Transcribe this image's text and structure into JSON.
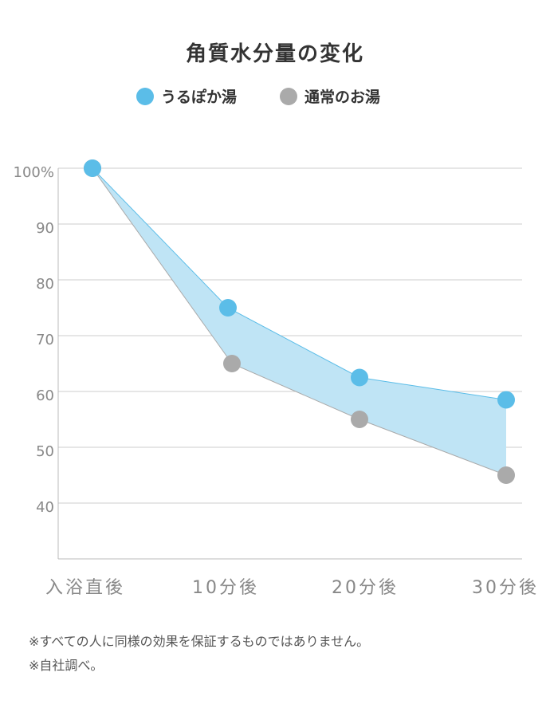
{
  "chart_data": {
    "type": "area",
    "title": "角質水分量の変化",
    "categories": [
      "入浴直後",
      "10分後",
      "20分後",
      "30分後"
    ],
    "series": [
      {
        "name": "うるぽか湯",
        "values": [
          100,
          75,
          62.5,
          58.5
        ],
        "color": "#5bbde8"
      },
      {
        "name": "通常のお湯",
        "values": [
          100,
          65,
          55,
          45
        ],
        "color": "#aaaaaa"
      }
    ],
    "fill_color": "#bfe4f5",
    "ylim": [
      30,
      100
    ],
    "yticks": [
      {
        "value": 100,
        "label": "100%"
      },
      {
        "value": 90,
        "label": "90"
      },
      {
        "value": 80,
        "label": "80"
      },
      {
        "value": 70,
        "label": "70"
      },
      {
        "value": 60,
        "label": "60"
      },
      {
        "value": 50,
        "label": "50"
      },
      {
        "value": 40,
        "label": "40"
      }
    ],
    "xlabel": "",
    "ylabel": "",
    "grid": true,
    "legend_position": "top-center"
  },
  "footnotes": [
    "※すべての人に同様の効果を保証するものではありません。",
    "※自社調べ。"
  ]
}
